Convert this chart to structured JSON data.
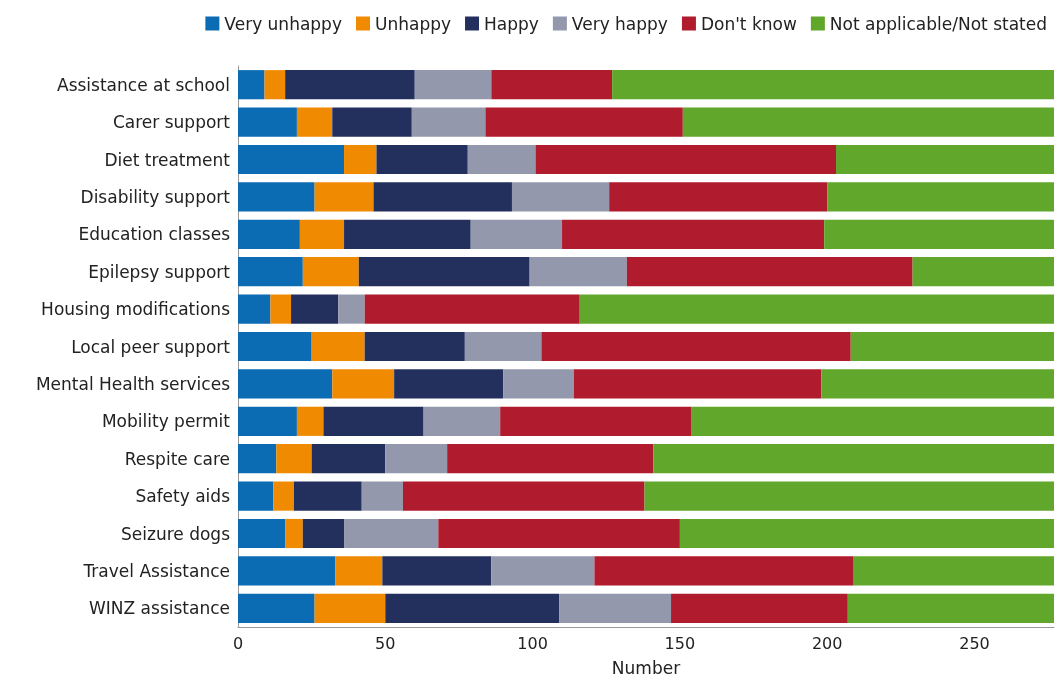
{
  "chart_data": {
    "type": "bar",
    "orientation": "horizontal",
    "stacked": true,
    "xlabel": "Number",
    "legend": "top",
    "grid": false,
    "categories": [
      "Assistance at school",
      "Carer support",
      "Diet treatment",
      "Disability support",
      "Education classes",
      "Epilepsy support",
      "Housing modifications",
      "Local peer support",
      "Mental Health services",
      "Mobility permit",
      "Respite care",
      "Safety aids",
      "Seizure dogs",
      "Travel Assistance",
      "WINZ assistance"
    ],
    "xlim": [
      0,
      277
    ],
    "xticks": [
      0,
      50,
      100,
      150,
      200,
      250
    ],
    "series": [
      {
        "name": "Very unhappy",
        "color": "#0b6bb3",
        "values": [
          9,
          20,
          36,
          26,
          21,
          22,
          11,
          25,
          32,
          20,
          13,
          12,
          16,
          33,
          26
        ]
      },
      {
        "name": "Unhappy",
        "color": "#f08a00",
        "values": [
          7,
          12,
          11,
          20,
          15,
          19,
          7,
          18,
          21,
          9,
          12,
          7,
          6,
          16,
          24
        ]
      },
      {
        "name": "Happy",
        "color": "#23305e",
        "values": [
          44,
          27,
          31,
          47,
          43,
          58,
          16,
          34,
          37,
          34,
          25,
          23,
          14,
          37,
          59
        ]
      },
      {
        "name": "Very happy",
        "color": "#9398ac",
        "values": [
          26,
          25,
          23,
          33,
          31,
          33,
          9,
          26,
          24,
          26,
          21,
          14,
          32,
          35,
          38
        ]
      },
      {
        "name": "Don't know",
        "color": "#b01b2d",
        "values": [
          41,
          67,
          102,
          74,
          89,
          97,
          73,
          105,
          84,
          65,
          70,
          82,
          82,
          88,
          60
        ]
      },
      {
        "name": "Not applicable/Not stated",
        "color": "#61a72b",
        "values": [
          150,
          126,
          74,
          77,
          78,
          48,
          161,
          69,
          79,
          123,
          136,
          139,
          127,
          68,
          70
        ]
      }
    ]
  }
}
